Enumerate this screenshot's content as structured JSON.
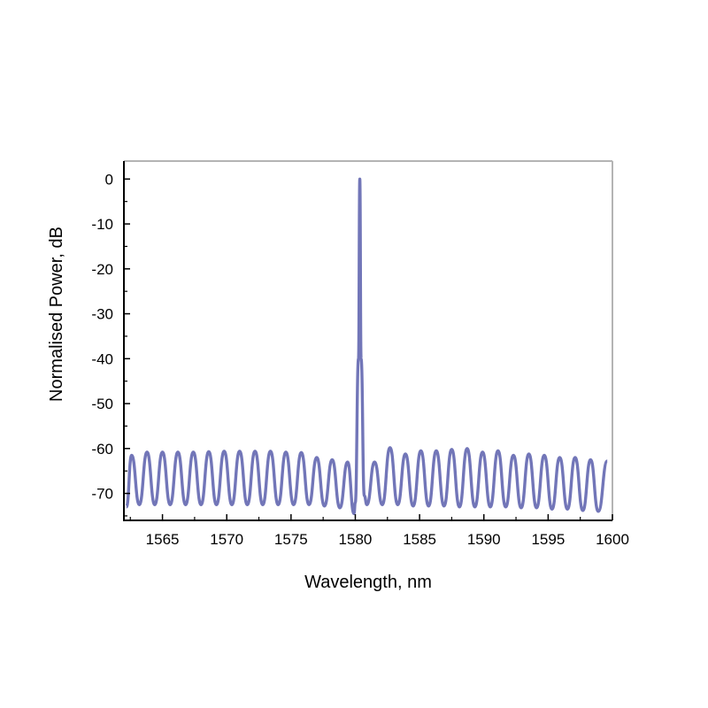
{
  "chart_data": {
    "type": "line",
    "title": "",
    "xlabel": "Wavelength, nm",
    "ylabel": "Normalised Power, dB",
    "xlim": [
      1562,
      1600
    ],
    "ylim": [
      -76,
      4
    ],
    "xticks": [
      1565,
      1570,
      1575,
      1580,
      1585,
      1590,
      1595,
      1600
    ],
    "yticks": [
      0,
      -10,
      -20,
      -30,
      -40,
      -50,
      -60,
      -70
    ],
    "grid": false,
    "legend": "none",
    "line_color": "#7276b8",
    "series": [
      {
        "name": "",
        "peak": {
          "x": 1580.35,
          "y": 0
        },
        "comb_peaks": [
          {
            "x": 1562.6,
            "y": -61.5
          },
          {
            "x": 1563.8,
            "y": -60.8
          },
          {
            "x": 1565.0,
            "y": -60.8
          },
          {
            "x": 1566.2,
            "y": -60.8
          },
          {
            "x": 1567.4,
            "y": -60.8
          },
          {
            "x": 1568.6,
            "y": -60.7
          },
          {
            "x": 1569.8,
            "y": -60.6
          },
          {
            "x": 1571.0,
            "y": -60.6
          },
          {
            "x": 1572.2,
            "y": -60.6
          },
          {
            "x": 1573.4,
            "y": -60.6
          },
          {
            "x": 1574.6,
            "y": -60.8
          },
          {
            "x": 1575.8,
            "y": -60.9
          },
          {
            "x": 1577.0,
            "y": -62.0
          },
          {
            "x": 1578.2,
            "y": -62.5
          },
          {
            "x": 1579.4,
            "y": -63.0
          },
          {
            "x": 1581.5,
            "y": -63.0
          },
          {
            "x": 1582.7,
            "y": -59.8
          },
          {
            "x": 1583.9,
            "y": -61.2
          },
          {
            "x": 1585.1,
            "y": -60.5
          },
          {
            "x": 1586.3,
            "y": -60.5
          },
          {
            "x": 1587.5,
            "y": -60.2
          },
          {
            "x": 1588.7,
            "y": -60.0
          },
          {
            "x": 1589.9,
            "y": -60.8
          },
          {
            "x": 1591.1,
            "y": -60.5
          },
          {
            "x": 1592.3,
            "y": -61.5
          },
          {
            "x": 1593.5,
            "y": -61.2
          },
          {
            "x": 1594.7,
            "y": -61.5
          },
          {
            "x": 1595.9,
            "y": -62.0
          },
          {
            "x": 1597.1,
            "y": -62.0
          },
          {
            "x": 1598.3,
            "y": -62.5
          },
          {
            "x": 1599.6,
            "y": -62.8
          }
        ],
        "troughs": [
          {
            "x": 1562.2,
            "y": -73.0
          },
          {
            "x": 1563.2,
            "y": -72.5
          },
          {
            "x": 1564.4,
            "y": -72.5
          },
          {
            "x": 1565.6,
            "y": -72.5
          },
          {
            "x": 1566.8,
            "y": -72.5
          },
          {
            "x": 1568.0,
            "y": -72.5
          },
          {
            "x": 1569.2,
            "y": -72.5
          },
          {
            "x": 1570.4,
            "y": -72.5
          },
          {
            "x": 1571.6,
            "y": -72.5
          },
          {
            "x": 1572.8,
            "y": -72.5
          },
          {
            "x": 1574.0,
            "y": -72.5
          },
          {
            "x": 1575.2,
            "y": -72.5
          },
          {
            "x": 1576.4,
            "y": -72.5
          },
          {
            "x": 1577.6,
            "y": -72.8
          },
          {
            "x": 1578.8,
            "y": -73.2
          },
          {
            "x": 1579.9,
            "y": -74.5
          },
          {
            "x": 1580.9,
            "y": -72.5
          },
          {
            "x": 1582.1,
            "y": -72.5
          },
          {
            "x": 1583.3,
            "y": -72.5
          },
          {
            "x": 1584.5,
            "y": -72.8
          },
          {
            "x": 1585.7,
            "y": -72.8
          },
          {
            "x": 1586.9,
            "y": -72.8
          },
          {
            "x": 1588.1,
            "y": -73.0
          },
          {
            "x": 1589.3,
            "y": -73.0
          },
          {
            "x": 1590.5,
            "y": -73.0
          },
          {
            "x": 1591.7,
            "y": -73.0
          },
          {
            "x": 1592.9,
            "y": -73.2
          },
          {
            "x": 1594.1,
            "y": -73.2
          },
          {
            "x": 1595.3,
            "y": -73.5
          },
          {
            "x": 1596.5,
            "y": -73.5
          },
          {
            "x": 1597.7,
            "y": -73.8
          },
          {
            "x": 1598.9,
            "y": -74.0
          }
        ]
      }
    ]
  }
}
